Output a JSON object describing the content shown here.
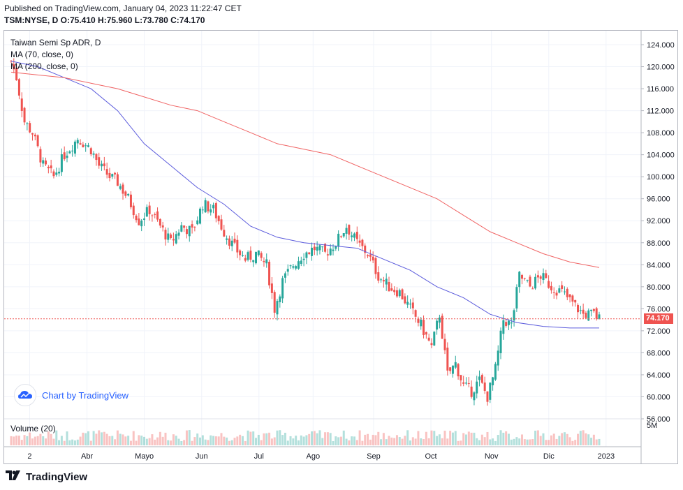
{
  "header": {
    "published": "Published on TradingView.com, January 04, 2023 11:22:47 CET",
    "ohlc": "TSM:NYSE, D O:75.410 H:75.960 L:73.780 C:74.170"
  },
  "legend": {
    "symbol": "Taiwan Semi Sp ADR, D",
    "ma70": "MA (70, close, 0)",
    "ma200": "MA (200, close, 0)",
    "volume": "Volume (20)"
  },
  "watermark": {
    "text": "Chart by TradingView"
  },
  "footer": {
    "brand": "TradingView"
  },
  "chart_data": {
    "type": "candlestick",
    "title": "Taiwan Semi Sp ADR, D",
    "symbol": "TSM:NYSE",
    "last_price": "74.170",
    "y_ticks": [
      "124.000",
      "120.000",
      "116.000",
      "112.000",
      "108.000",
      "104.000",
      "100.000",
      "96.000",
      "92.000",
      "88.000",
      "84.000",
      "80.000",
      "76.000",
      "72.000",
      "68.000",
      "64.000",
      "60.000",
      "56.000"
    ],
    "ylim": [
      56,
      124
    ],
    "volume_label": "5M",
    "x_ticks": [
      "2",
      "Abr",
      "Mayo",
      "Jun",
      "Jul",
      "Ago",
      "Sep",
      "Oct",
      "Nov",
      "Dic",
      "2023"
    ],
    "close_path": [
      [
        0,
        121
      ],
      [
        2,
        118
      ],
      [
        5,
        110
      ],
      [
        8,
        108
      ],
      [
        12,
        102
      ],
      [
        16,
        100
      ],
      [
        20,
        104
      ],
      [
        25,
        107
      ],
      [
        30,
        105
      ],
      [
        33,
        102
      ],
      [
        37,
        100
      ],
      [
        40,
        99
      ],
      [
        44,
        96
      ],
      [
        48,
        92
      ],
      [
        52,
        94
      ],
      [
        56,
        91
      ],
      [
        60,
        88
      ],
      [
        64,
        91
      ],
      [
        68,
        90
      ],
      [
        72,
        95
      ],
      [
        76,
        94
      ],
      [
        80,
        90
      ],
      [
        84,
        87
      ],
      [
        88,
        85
      ],
      [
        92,
        86
      ],
      [
        96,
        84
      ],
      [
        99,
        76
      ],
      [
        102,
        81
      ],
      [
        106,
        84
      ],
      [
        110,
        86
      ],
      [
        114,
        87
      ],
      [
        118,
        86
      ],
      [
        122,
        88
      ],
      [
        126,
        91
      ],
      [
        130,
        88
      ],
      [
        134,
        86
      ],
      [
        138,
        82
      ],
      [
        142,
        80
      ],
      [
        146,
        79
      ],
      [
        150,
        76
      ],
      [
        154,
        73
      ],
      [
        158,
        69
      ],
      [
        161,
        75
      ],
      [
        164,
        64
      ],
      [
        167,
        66
      ],
      [
        170,
        62
      ],
      [
        173,
        61
      ],
      [
        176,
        63
      ],
      [
        179,
        60
      ],
      [
        182,
        65
      ],
      [
        185,
        74
      ],
      [
        188,
        73
      ],
      [
        191,
        82
      ],
      [
        195,
        80
      ],
      [
        199,
        82
      ],
      [
        203,
        80
      ],
      [
        207,
        79
      ],
      [
        211,
        77
      ],
      [
        215,
        75
      ],
      [
        219,
        75
      ],
      [
        221,
        74.17
      ]
    ],
    "series": [
      {
        "name": "MA (70, close, 0)",
        "color": "#5b5bdc",
        "points": [
          [
            0,
            121
          ],
          [
            10,
            120
          ],
          [
            20,
            118
          ],
          [
            30,
            116
          ],
          [
            40,
            112
          ],
          [
            50,
            106
          ],
          [
            60,
            102
          ],
          [
            70,
            98
          ],
          [
            80,
            95
          ],
          [
            90,
            91
          ],
          [
            100,
            89
          ],
          [
            110,
            88
          ],
          [
            120,
            87.5
          ],
          [
            130,
            87
          ],
          [
            140,
            85
          ],
          [
            150,
            83
          ],
          [
            160,
            80
          ],
          [
            170,
            78
          ],
          [
            180,
            75
          ],
          [
            190,
            73.5
          ],
          [
            200,
            72.8
          ],
          [
            210,
            72.5
          ],
          [
            221,
            72.5
          ]
        ]
      },
      {
        "name": "MA (200, close, 0)",
        "color": "#f06464",
        "points": [
          [
            0,
            119
          ],
          [
            10,
            118.5
          ],
          [
            20,
            118
          ],
          [
            30,
            117
          ],
          [
            40,
            116
          ],
          [
            50,
            114.5
          ],
          [
            60,
            113
          ],
          [
            70,
            112
          ],
          [
            80,
            110
          ],
          [
            90,
            108
          ],
          [
            100,
            106
          ],
          [
            110,
            105
          ],
          [
            120,
            104
          ],
          [
            130,
            102
          ],
          [
            140,
            100
          ],
          [
            150,
            98
          ],
          [
            160,
            96
          ],
          [
            170,
            93
          ],
          [
            180,
            90
          ],
          [
            190,
            88
          ],
          [
            200,
            86
          ],
          [
            210,
            84.5
          ],
          [
            221,
            83.5
          ]
        ]
      }
    ]
  }
}
